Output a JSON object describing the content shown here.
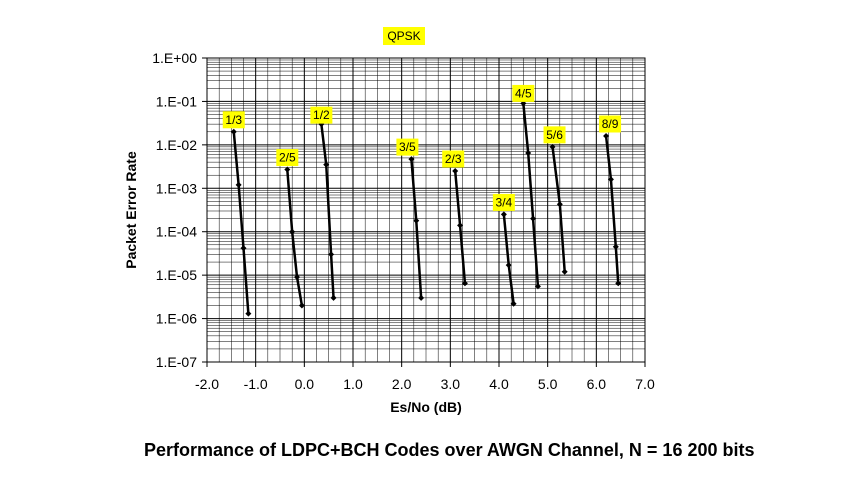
{
  "caption": "Performance of LDPC+BCH Codes over AWGN Channel, N = 16 200 bits",
  "chart_data": {
    "type": "line",
    "title": "QPSK",
    "xlabel": "Es/No (dB)",
    "ylabel": "Packet Error Rate",
    "xlim": [
      -2.0,
      7.0
    ],
    "ylim": [
      1e-07,
      1
    ],
    "yscale": "log",
    "x_ticks": [
      "-2.0",
      "-1.0",
      "0.0",
      "1.0",
      "2.0",
      "3.0",
      "4.0",
      "5.0",
      "6.0",
      "7.0"
    ],
    "y_ticks": [
      "1.E+00",
      "1.E-01",
      "1.E-02",
      "1.E-03",
      "1.E-04",
      "1.E-05",
      "1.E-06",
      "1.E-07"
    ],
    "grid": true,
    "label_color": "#ffff00",
    "line_color": "#000000",
    "series": [
      {
        "name": "1/3",
        "points": [
          [
            -1.45,
            0.02
          ],
          [
            -1.35,
            0.0012
          ],
          [
            -1.25,
            4.2e-05
          ],
          [
            -1.15,
            1.3e-06
          ]
        ]
      },
      {
        "name": "2/5",
        "points": [
          [
            -0.35,
            0.0027
          ],
          [
            -0.25,
            0.0001
          ],
          [
            -0.15,
            9e-06
          ],
          [
            -0.05,
            2e-06
          ]
        ]
      },
      {
        "name": "1/2",
        "points": [
          [
            0.35,
            0.03
          ],
          [
            0.45,
            0.0035
          ],
          [
            0.55,
            3e-05
          ],
          [
            0.6,
            3e-06
          ]
        ]
      },
      {
        "name": "3/5",
        "points": [
          [
            2.2,
            0.0047
          ],
          [
            2.3,
            0.00018
          ],
          [
            2.4,
            3e-06
          ]
        ]
      },
      {
        "name": "2/3",
        "points": [
          [
            3.1,
            0.0025
          ],
          [
            3.2,
            0.00014
          ],
          [
            3.3,
            6.5e-06
          ]
        ]
      },
      {
        "name": "3/4",
        "points": [
          [
            4.1,
            0.00025
          ],
          [
            4.2,
            1.7e-05
          ],
          [
            4.3,
            2.2e-06
          ]
        ]
      },
      {
        "name": "4/5",
        "points": [
          [
            4.5,
            0.09
          ],
          [
            4.6,
            0.0065
          ],
          [
            4.7,
            0.0002
          ],
          [
            4.8,
            5.5e-06
          ]
        ]
      },
      {
        "name": "5/6",
        "points": [
          [
            5.1,
            0.009
          ],
          [
            5.25,
            0.00043
          ],
          [
            5.35,
            1.2e-05
          ]
        ]
      },
      {
        "name": "8/9",
        "points": [
          [
            6.2,
            0.016
          ],
          [
            6.3,
            0.0016
          ],
          [
            6.4,
            4.5e-05
          ],
          [
            6.45,
            6.5e-06
          ]
        ]
      }
    ]
  }
}
